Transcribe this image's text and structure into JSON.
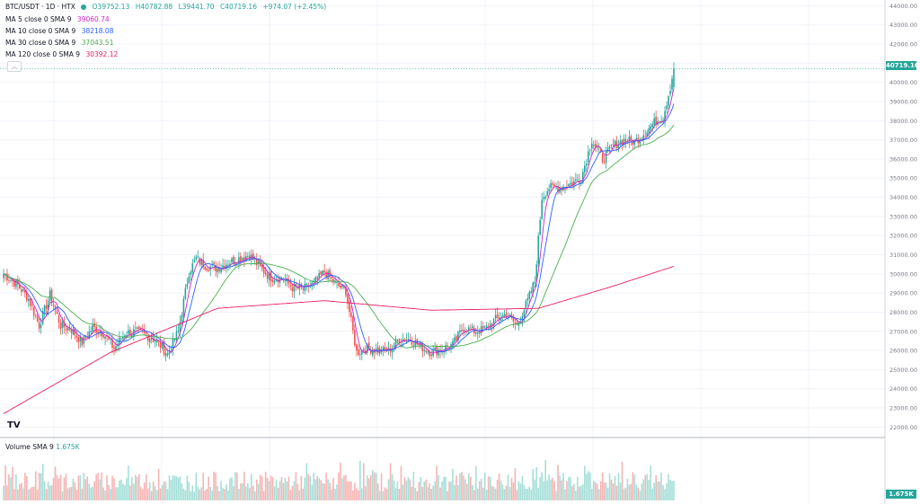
{
  "header": {
    "symbol": "BTC/USDT · 1D · HTX",
    "ohlc": {
      "open": "O39752.13",
      "high": "H40782.88",
      "low": "L39441.70",
      "close": "C40719.16",
      "change": "+974.07 (+2.45%)"
    }
  },
  "indicators": [
    {
      "label": "MA 5 close 0 SMA 9",
      "value": "39060.74",
      "color": "#d126c8"
    },
    {
      "label": "MA 10 close 0 SMA 9",
      "value": "38218.08",
      "color": "#2962ff"
    },
    {
      "label": "MA 30 close 0 SMA 9",
      "value": "37043.51",
      "color": "#4caf50"
    },
    {
      "label": "MA 120 close 0 SMA 9",
      "value": "30392.12",
      "color": "#e91e63"
    }
  ],
  "collapse_icon": "chevron-up-icon",
  "volume": {
    "label": "Volume SMA 9",
    "value": "1.675K",
    "badge": "1.675K"
  },
  "last_price_badge": "40719.16",
  "logo": "TV",
  "colors": {
    "up": "#26a69a",
    "down": "#ef5350",
    "vol_up": "#a5dfd8",
    "vol_down": "#f7b4b4",
    "grid": "#f0f3fa"
  },
  "chart_data": {
    "type": "candlestick",
    "title": "BTC/USDT · 1D · HTX",
    "y_ticks": [
      "22000.00",
      "23000.00",
      "24000.00",
      "25000.00",
      "26000.00",
      "27000.00",
      "28000.00",
      "29000.00",
      "30000.00",
      "31000.00",
      "32000.00",
      "33000.00",
      "34000.00",
      "35000.00",
      "36000.00",
      "37000.00",
      "38000.00",
      "39000.00",
      "40000.00",
      "41000.00",
      "42000.00",
      "43000.00",
      "44000.00"
    ],
    "ylim": [
      21500,
      44300
    ],
    "grid": true,
    "close_anchors": [
      [
        0,
        30000
      ],
      [
        8,
        29400
      ],
      [
        14,
        28700
      ],
      [
        20,
        27300
      ],
      [
        26,
        28900
      ],
      [
        32,
        27300
      ],
      [
        38,
        27100
      ],
      [
        44,
        26400
      ],
      [
        50,
        27200
      ],
      [
        56,
        26900
      ],
      [
        62,
        26100
      ],
      [
        68,
        26900
      ],
      [
        74,
        27000
      ],
      [
        80,
        26800
      ],
      [
        86,
        26500
      ],
      [
        92,
        25800
      ],
      [
        98,
        27000
      ],
      [
        104,
        30100
      ],
      [
        108,
        30800
      ],
      [
        114,
        30400
      ],
      [
        120,
        30300
      ],
      [
        126,
        30600
      ],
      [
        132,
        30800
      ],
      [
        138,
        31000
      ],
      [
        144,
        30300
      ],
      [
        150,
        29800
      ],
      [
        156,
        29800
      ],
      [
        162,
        29300
      ],
      [
        168,
        29200
      ],
      [
        174,
        29500
      ],
      [
        180,
        30100
      ],
      [
        186,
        29500
      ],
      [
        192,
        29100
      ],
      [
        198,
        25900
      ],
      [
        204,
        26100
      ],
      [
        210,
        26000
      ],
      [
        216,
        26000
      ],
      [
        222,
        26600
      ],
      [
        228,
        26600
      ],
      [
        234,
        26200
      ],
      [
        240,
        25900
      ],
      [
        246,
        26100
      ],
      [
        252,
        26300
      ],
      [
        258,
        27200
      ],
      [
        264,
        27000
      ],
      [
        270,
        27100
      ],
      [
        276,
        27600
      ],
      [
        282,
        27900
      ],
      [
        288,
        27300
      ],
      [
        294,
        28600
      ],
      [
        298,
        29600
      ],
      [
        302,
        34000
      ],
      [
        306,
        34500
      ],
      [
        312,
        34500
      ],
      [
        318,
        34700
      ],
      [
        324,
        35000
      ],
      [
        330,
        37000
      ],
      [
        336,
        36000
      ],
      [
        342,
        36700
      ],
      [
        348,
        37000
      ],
      [
        354,
        36900
      ],
      [
        360,
        37400
      ],
      [
        366,
        38000
      ],
      [
        370,
        38200
      ],
      [
        374,
        39750
      ],
      [
        376,
        40719
      ]
    ],
    "ma_values": [
      {
        "name": "MA 120",
        "x": [
          0,
          60,
          120,
          180,
          240,
          300,
          340,
          376
        ],
        "y": [
          22700,
          25900,
          28200,
          28600,
          28100,
          28200,
          29300,
          30392
        ]
      }
    ]
  }
}
